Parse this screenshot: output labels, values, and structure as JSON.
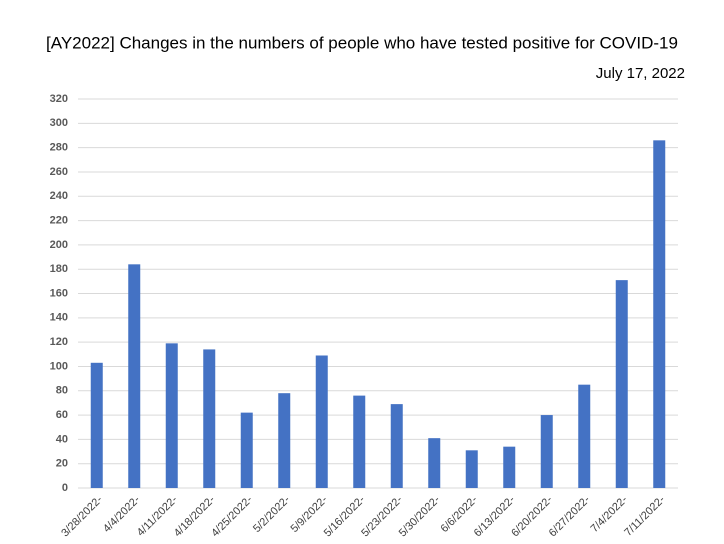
{
  "chart_data": {
    "type": "bar",
    "title": "[AY2022] Changes in the numbers of people who have tested positive for COVID-19",
    "subtitle": "July 17, 2022",
    "categories": [
      "3/28/2022-",
      "4/4/2022-",
      "4/11/2022-",
      "4/18/2022-",
      "4/25/2022-",
      "5/2/2022-",
      "5/9/2022-",
      "5/16/2022-",
      "5/23/2022-",
      "5/30/2022-",
      "6/6/2022-",
      "6/13/2022-",
      "6/20/2022-",
      "6/27/2022-",
      "7/4/2022-",
      "7/11/2022-"
    ],
    "values": [
      103,
      184,
      119,
      114,
      62,
      78,
      109,
      76,
      69,
      41,
      31,
      34,
      60,
      85,
      171,
      286
    ],
    "color": "#4472c4",
    "ylim": [
      0,
      320
    ],
    "yticks": [
      0,
      20,
      40,
      60,
      80,
      100,
      120,
      140,
      160,
      180,
      200,
      220,
      240,
      260,
      280,
      300,
      320
    ],
    "grid": true
  }
}
